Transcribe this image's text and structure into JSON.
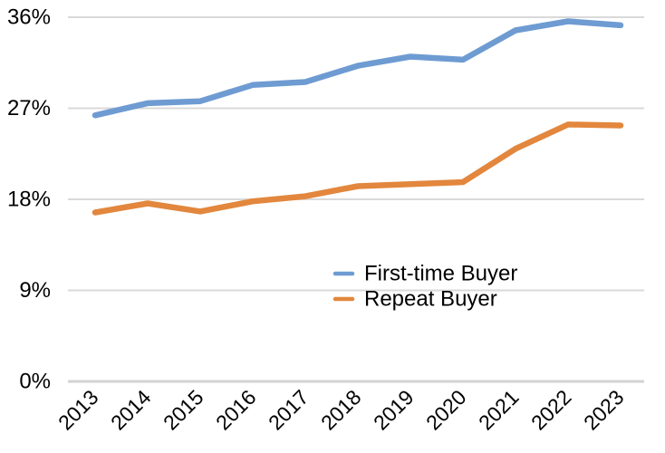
{
  "chart_data": {
    "type": "line",
    "title": "",
    "xlabel": "",
    "ylabel": "",
    "x_categories": [
      "2013",
      "2014",
      "2015",
      "2016",
      "2017",
      "2018",
      "2019",
      "2020",
      "2021",
      "2022",
      "2023"
    ],
    "series": [
      {
        "name": "First-time Buyer",
        "color": "#6E9BD2",
        "values": [
          26.3,
          27.5,
          27.7,
          29.3,
          29.6,
          31.2,
          32.1,
          31.8,
          34.7,
          35.6,
          35.2
        ]
      },
      {
        "name": "Repeat Buyer",
        "color": "#E2873D",
        "values": [
          16.7,
          17.6,
          16.8,
          17.8,
          18.3,
          19.3,
          19.5,
          19.7,
          23.0,
          25.4,
          25.3
        ]
      }
    ],
    "ylim": [
      0,
      36
    ],
    "yticks": [
      0,
      9,
      18,
      27,
      36
    ],
    "ytick_labels": [
      "0%",
      "9%",
      "18%",
      "27%",
      "36%"
    ],
    "grid": true,
    "legend_position": "inside-center",
    "styles": {
      "gridline_color": "#D9D9D9",
      "axis_line_color": "#D3D3D3",
      "text_color": "#000000",
      "background": "#FFFFFF"
    }
  }
}
